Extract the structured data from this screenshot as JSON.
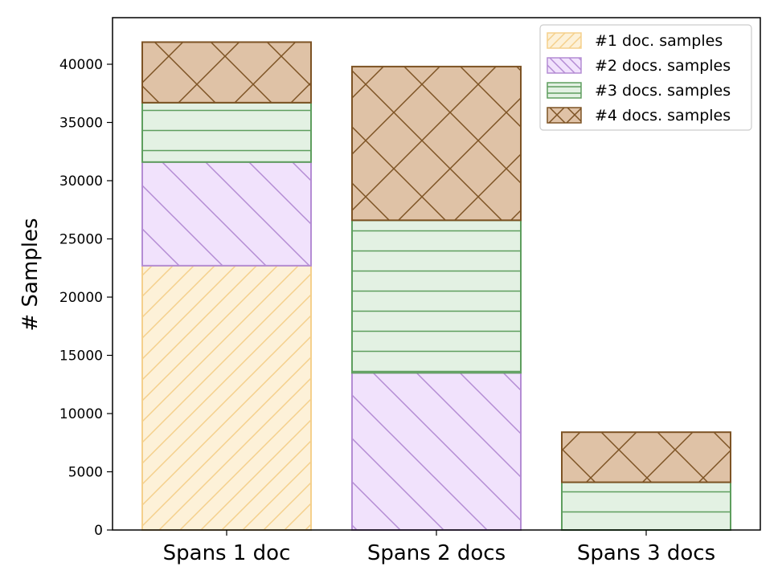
{
  "chart_data": {
    "type": "bar",
    "stacked": true,
    "categories": [
      "Spans 1 doc",
      "Spans 2 docs",
      "Spans 3 docs"
    ],
    "ylabel": "# Samples",
    "xlabel": "",
    "title": "",
    "ylim": [
      0,
      44000
    ],
    "yticks": [
      0,
      5000,
      10000,
      15000,
      20000,
      25000,
      30000,
      35000,
      40000
    ],
    "grid": false,
    "legend_position": "top-right",
    "series": [
      {
        "name": "#1 doc. samples",
        "values": [
          22700,
          0,
          0
        ],
        "fill": "#fdf1d8",
        "edge": "#f5d08c",
        "hatch": "diagonal-forward"
      },
      {
        "name": "#2 docs. samples",
        "values": [
          8900,
          13500,
          0
        ],
        "fill": "#f1e2fc",
        "edge": "#b48cd4",
        "hatch": "diagonal-back"
      },
      {
        "name": "#3 docs. samples",
        "values": [
          5100,
          13100,
          4100
        ],
        "fill": "#e3f1e3",
        "edge": "#5e9e5e",
        "hatch": "horizontal"
      },
      {
        "name": "#4 docs. samples",
        "values": [
          5200,
          13200,
          4300
        ],
        "fill": "#dfc2a6",
        "edge": "#7d5324",
        "hatch": "cross"
      }
    ]
  }
}
